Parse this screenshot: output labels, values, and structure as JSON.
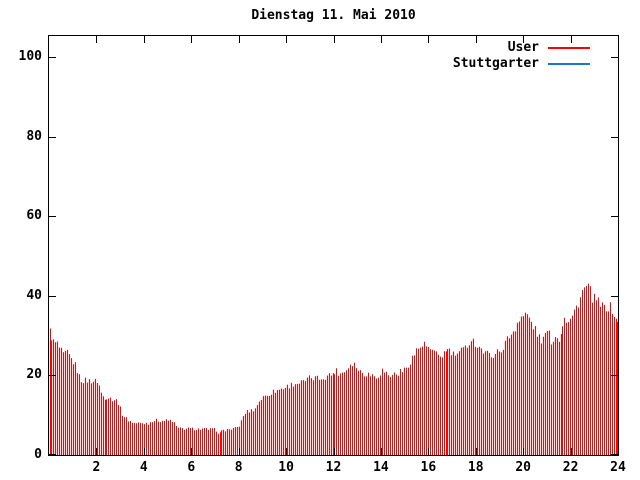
{
  "title": "Dienstag 11. Mai 2010",
  "legend": [
    {
      "label": "User",
      "color": "#ff0000"
    },
    {
      "label": "Stuttgarter",
      "color": "#1577d2"
    }
  ],
  "colors": {
    "background": "#ffffff",
    "frame": "#000000",
    "text": "#000000",
    "user_series": "#ff0000",
    "stuttgarter_series": "#1577d2"
  },
  "chart_data": {
    "type": "bar",
    "title": "Dienstag 11. Mai 2010",
    "xlabel": "",
    "ylabel": "",
    "x_axis": {
      "min": 0,
      "max": 24,
      "ticks": [
        2,
        4,
        6,
        8,
        10,
        12,
        14,
        16,
        18,
        20,
        22,
        24
      ]
    },
    "y_axis": {
      "min": 0,
      "max": 105,
      "ticks": [
        0,
        20,
        40,
        60,
        80,
        100
      ]
    },
    "grid": false,
    "legend_position": "top-right-inside",
    "ticks_mirrored": true,
    "series": [
      {
        "name": "User",
        "color": "#ff0000",
        "style": "impulses",
        "samples_per_hour": 12,
        "sample_count": 288,
        "jitter": {
          "base": 0.15,
          "scale": 0.035
        },
        "envelope_points": [
          [
            0.0,
            31.0
          ],
          [
            0.1,
            29.5
          ],
          [
            0.2,
            27.8
          ],
          [
            0.3,
            28.3
          ],
          [
            0.45,
            26.5
          ],
          [
            0.6,
            24.8
          ],
          [
            0.7,
            25.8
          ],
          [
            0.8,
            25.2
          ],
          [
            0.9,
            24.2
          ],
          [
            1.0,
            23.4
          ],
          [
            1.1,
            22.4
          ],
          [
            1.2,
            20.8
          ],
          [
            1.3,
            18.8
          ],
          [
            2.05,
            18.5
          ],
          [
            2.15,
            15.8
          ],
          [
            2.3,
            14.4
          ],
          [
            2.45,
            14.6
          ],
          [
            2.9,
            13.6
          ],
          [
            3.0,
            11.8
          ],
          [
            3.1,
            10.2
          ],
          [
            3.3,
            8.9
          ],
          [
            3.6,
            8.0
          ],
          [
            4.2,
            8.0
          ],
          [
            4.35,
            8.7
          ],
          [
            5.2,
            8.6
          ],
          [
            5.4,
            6.7
          ],
          [
            7.0,
            6.4
          ],
          [
            7.15,
            5.4
          ],
          [
            7.35,
            6.2
          ],
          [
            7.9,
            6.7
          ],
          [
            8.05,
            7.5
          ],
          [
            8.25,
            10.6
          ],
          [
            8.5,
            11.2
          ],
          [
            8.7,
            11.6
          ],
          [
            8.85,
            13.6
          ],
          [
            9.1,
            14.8
          ],
          [
            9.4,
            15.8
          ],
          [
            9.9,
            16.9
          ],
          [
            10.3,
            17.9
          ],
          [
            10.7,
            18.3
          ],
          [
            11.0,
            19.4
          ],
          [
            11.4,
            19.2
          ],
          [
            11.9,
            20.3
          ],
          [
            12.1,
            21.2
          ],
          [
            12.3,
            20.4
          ],
          [
            12.6,
            21.8
          ],
          [
            12.75,
            23.4
          ],
          [
            12.9,
            22.8
          ],
          [
            13.1,
            21.0
          ],
          [
            13.4,
            20.4
          ],
          [
            13.85,
            19.8
          ],
          [
            14.05,
            21.3
          ],
          [
            14.35,
            19.9
          ],
          [
            14.7,
            20.6
          ],
          [
            15.0,
            21.4
          ],
          [
            15.2,
            23.5
          ],
          [
            15.5,
            26.5
          ],
          [
            15.75,
            27.8
          ],
          [
            16.0,
            26.8
          ],
          [
            16.2,
            25.4
          ],
          [
            16.5,
            24.9
          ],
          [
            16.85,
            26.6
          ],
          [
            17.05,
            25.1
          ],
          [
            17.3,
            25.6
          ],
          [
            17.6,
            27.0
          ],
          [
            17.8,
            29.4
          ],
          [
            17.95,
            28.2
          ],
          [
            18.15,
            27.2
          ],
          [
            18.4,
            25.4
          ],
          [
            18.8,
            25.3
          ],
          [
            19.1,
            26.7
          ],
          [
            19.35,
            29.4
          ],
          [
            19.55,
            30.8
          ],
          [
            19.75,
            33.6
          ],
          [
            20.0,
            35.0
          ],
          [
            20.15,
            35.2
          ],
          [
            20.35,
            33.0
          ],
          [
            20.6,
            30.0
          ],
          [
            20.8,
            28.6
          ],
          [
            21.0,
            31.5
          ],
          [
            21.15,
            28.7
          ],
          [
            21.3,
            30.0
          ],
          [
            21.45,
            28.8
          ],
          [
            21.6,
            31.0
          ],
          [
            21.72,
            35.6
          ],
          [
            21.85,
            33.8
          ],
          [
            22.05,
            34.4
          ],
          [
            22.3,
            38.0
          ],
          [
            22.5,
            41.0
          ],
          [
            22.65,
            42.2
          ],
          [
            22.8,
            41.4
          ],
          [
            22.95,
            39.2
          ],
          [
            23.15,
            38.4
          ],
          [
            23.35,
            37.0
          ],
          [
            23.55,
            37.4
          ],
          [
            23.75,
            36.6
          ],
          [
            23.92,
            33.5
          ]
        ]
      },
      {
        "name": "Stuttgarter",
        "color": "#1577d2",
        "style": "lines",
        "values": []
      }
    ]
  }
}
